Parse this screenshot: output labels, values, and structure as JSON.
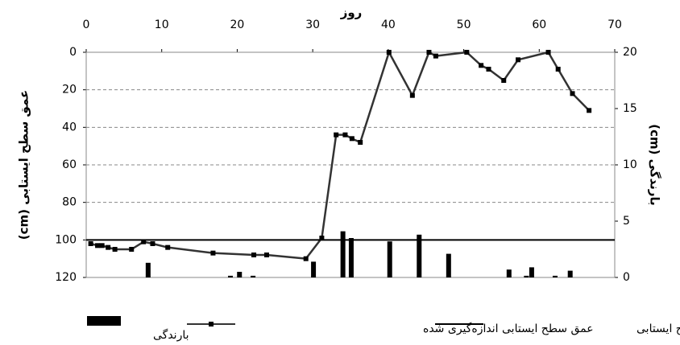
{
  "chart_data": {
    "type": "line",
    "x_label": "روز",
    "y_label": "عمق سطح ایستابی (cm)",
    "y2_label": "بارندگی (cm)",
    "xlim": [
      0,
      70
    ],
    "xticks": [
      0,
      10,
      20,
      30,
      40,
      50,
      60,
      70
    ],
    "ylim": [
      0,
      120
    ],
    "y_inverted": true,
    "yticks": [
      0,
      20,
      40,
      60,
      80,
      100,
      120
    ],
    "y2lim": [
      0,
      20
    ],
    "y2ticks": [
      0,
      5,
      10,
      15,
      20
    ],
    "grid": true,
    "series": [
      {
        "name": "بارندگی",
        "type": "bar",
        "axis": "y2",
        "color": "#000000",
        "x": [
          8.2,
          19.1,
          20.3,
          22.1,
          30.1,
          34.0,
          35.1,
          40.2,
          44.1,
          48.0,
          56.0,
          58.3,
          59.0,
          62.1,
          64.1
        ],
        "values": [
          1.3,
          0.15,
          0.5,
          0.15,
          1.4,
          4.1,
          3.5,
          3.2,
          3.8,
          2.1,
          0.7,
          0.15,
          0.9,
          0.15,
          0.6
        ]
      },
      {
        "name": "عمق سطح ایستابی اندازه‌گیری شده",
        "type": "line",
        "color": "#333333",
        "marker": "square",
        "x": [
          0.6,
          1.5,
          2.1,
          2.9,
          3.8,
          6.0,
          7.6,
          8.8,
          10.8,
          16.8,
          22.2,
          23.9,
          29.1,
          31.2,
          33.1,
          34.3,
          35.2,
          36.3,
          40.1,
          43.2,
          45.4,
          46.3,
          50.4,
          52.3,
          53.3,
          55.3,
          57.2,
          61.2,
          62.5,
          64.4,
          66.6
        ],
        "values": [
          102,
          103,
          103,
          104,
          105,
          105,
          101,
          102,
          104,
          107,
          108,
          108,
          110,
          99,
          44,
          44,
          46,
          48,
          0,
          23,
          0,
          2,
          0,
          7,
          9,
          15,
          4,
          0,
          9,
          22,
          31
        ]
      },
      {
        "name": "حد کنترل سطح ایستابی",
        "type": "line",
        "color": "#000000",
        "x": [
          0,
          70
        ],
        "values": [
          100,
          100
        ]
      }
    ]
  }
}
